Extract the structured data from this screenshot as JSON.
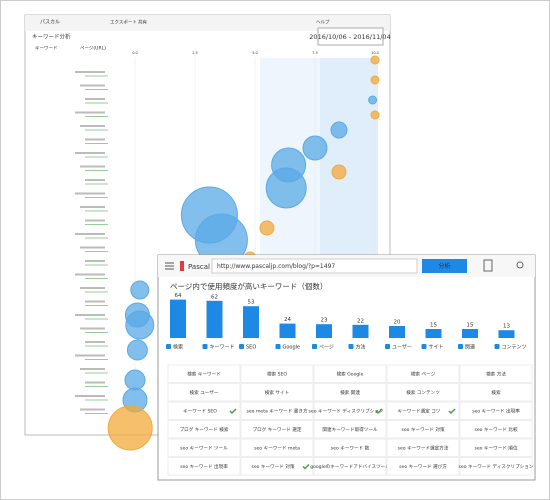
{
  "back_window": {
    "brand": "パスカル",
    "nav": [
      "エクスポート",
      "共有",
      "ヘルプ"
    ],
    "heading": "キーワード分析",
    "date_range": "2016/10/06 - 2016/11/04",
    "columns": [
      "キーワード",
      "ページ(URL)"
    ],
    "chart": {
      "type": "bubble",
      "xlim": [
        0,
        10
      ],
      "xticks": [
        {
          "value": 0,
          "label": "0.0"
        },
        {
          "value": 2.5,
          "label": "2.5"
        },
        {
          "value": 5,
          "label": "5.0"
        },
        {
          "value": 7.5,
          "label": "7.5"
        },
        {
          "value": 10,
          "label": "10.0"
        }
      ],
      "series": [
        {
          "color": "#5aa9e6",
          "x": [
            8.5,
            7.5,
            6.4,
            6.3,
            3.1,
            3.6,
            0.2,
            0.1,
            0.2,
            0.1,
            0,
            0,
            9.9
          ],
          "y": [
            130,
            148,
            165,
            188,
            215,
            240,
            290,
            315,
            325,
            350,
            380,
            400,
            100
          ],
          "size": [
            8,
            12,
            17,
            20,
            28,
            26,
            9,
            12,
            14,
            10,
            10,
            12,
            4
          ]
        },
        {
          "color": "#f2a93b",
          "x": [
            8.5,
            5.5,
            4.8,
            -0.2,
            10,
            10,
            10
          ],
          "y": [
            172,
            228,
            258,
            428,
            60,
            80,
            115
          ],
          "size": [
            7,
            7,
            6,
            22,
            4,
            4,
            4
          ]
        }
      ]
    }
  },
  "front_window": {
    "brand": "Pascal",
    "url": "http://www.pascaljp.com/blog/?p=1497",
    "button": "分析",
    "title": "ページ内で使用頻度が高いキーワード（個数）",
    "chart_data": {
      "type": "bar",
      "color": "#1e88e5",
      "ylim": [
        0,
        70
      ],
      "categories": [
        "検索",
        "キーワード",
        "SEO",
        "Google",
        "ページ",
        "方法",
        "ユーザー",
        "サイト",
        "関連",
        "コンテンツ"
      ],
      "values": [
        64,
        62,
        53,
        24,
        23,
        22,
        20,
        15,
        15,
        13
      ]
    },
    "table": {
      "rows": [
        [
          {
            "text": "検索 キーワード"
          },
          {
            "text": "検索 SEO"
          },
          {
            "text": "検索 Google"
          },
          {
            "text": "検索 ページ"
          },
          {
            "text": "検索 方法"
          }
        ],
        [
          {
            "text": "検索 ユーザー"
          },
          {
            "text": "検索 サイト"
          },
          {
            "text": "検索 関連"
          },
          {
            "text": "検索 コンテンツ"
          },
          {
            "text": "検索"
          }
        ],
        [
          {
            "text": "キーワード SEO",
            "check": true
          },
          {
            "text": "seo meta キーワード 書き方"
          },
          {
            "text": "seo キーワード ディスクリプション",
            "check": true
          },
          {
            "text": "キーワード選定 コツ",
            "check": true
          },
          {
            "text": "seo キーワード 出現率"
          }
        ],
        [
          {
            "text": "ブログ キーワード 検索"
          },
          {
            "text": "ブログ キーワード 選定"
          },
          {
            "text": "関連キーワード取得ツール"
          },
          {
            "text": "seo キーワード 対策"
          },
          {
            "text": "seo キーワード 比較"
          }
        ],
        [
          {
            "text": "seo キーワード ツール"
          },
          {
            "text": "seo キーワード meta"
          },
          {
            "text": "seo キーワード 数"
          },
          {
            "text": "seo キーワード選定方法"
          },
          {
            "text": "seo キーワード 順位"
          }
        ],
        [
          {
            "text": "seo キーワード 出現率"
          },
          {
            "text": "seo キーワード 対策",
            "check": true
          },
          {
            "text": "googleのキーワードアドバイスツール"
          },
          {
            "text": "seo キーワード 選び方"
          },
          {
            "text": "seo キーワード ディスクリプション"
          }
        ]
      ]
    }
  }
}
